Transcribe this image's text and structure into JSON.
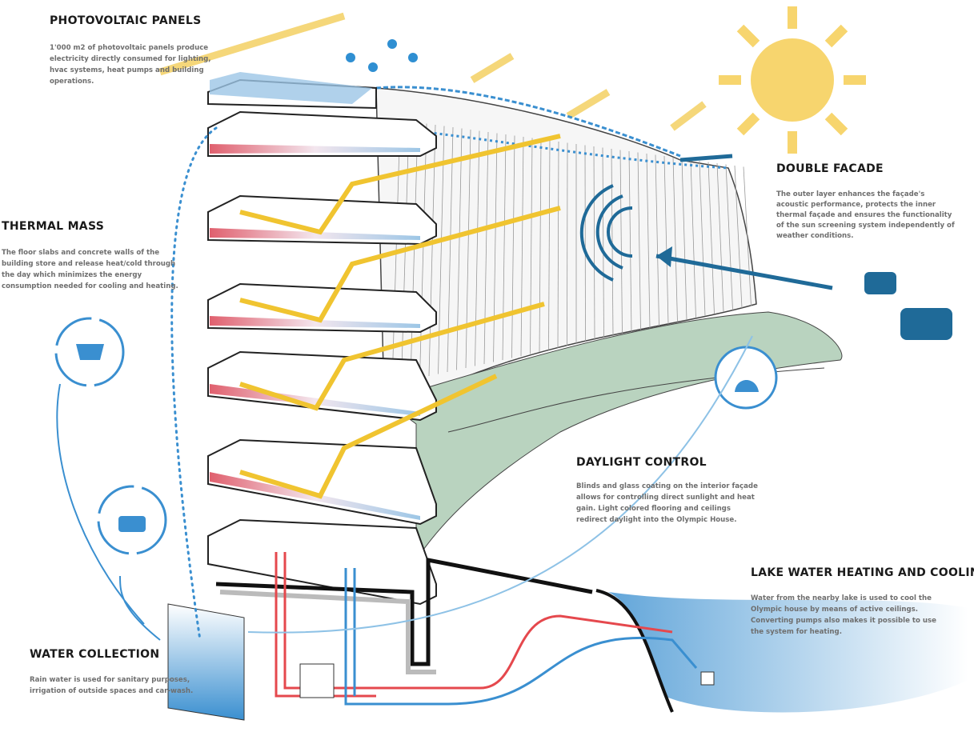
{
  "sections": [
    {
      "title": "PHOTOVOLTAIC PANELS",
      "body": [
        "1'000 m2 of photovoltaic panels produce",
        "electricity directly consumed for lighting,",
        "hvac systems, heat pumps and building",
        "operations."
      ]
    },
    {
      "title": "THERMAL MASS",
      "body": [
        "The floor slabs and concrete walls of the",
        "building store and release heat/cold through",
        "the day which minimizes the energy",
        "consumption needed for cooling and heating."
      ]
    },
    {
      "title": "DOUBLE FACADE",
      "body": [
        "The outer layer enhances the façade's",
        "acoustic performance, protects the inner",
        "thermal façade and ensures the functionality",
        "of the sun screening system independently of",
        "weather conditions."
      ]
    },
    {
      "title": "DAYLIGHT CONTROL",
      "body": [
        "Blinds and glass coating on the interior façade",
        "allows for controlling direct sunlight and heat",
        "gain. Light colored flooring and ceilings",
        "redirect daylight into the Olympic House."
      ]
    },
    {
      "title": "WATER COLLECTION",
      "body": [
        "Rain water is used for sanitary purposes,",
        "irrigation of outside spaces and car-wash."
      ]
    },
    {
      "title": "LAKE WATER HEATING AND COOLING",
      "body": [
        "Water from the nearby lake is used to cool the",
        "Olympic house by means of active ceilings.",
        "Converting pumps also makes it possible to use",
        "the system for heating."
      ]
    }
  ]
}
